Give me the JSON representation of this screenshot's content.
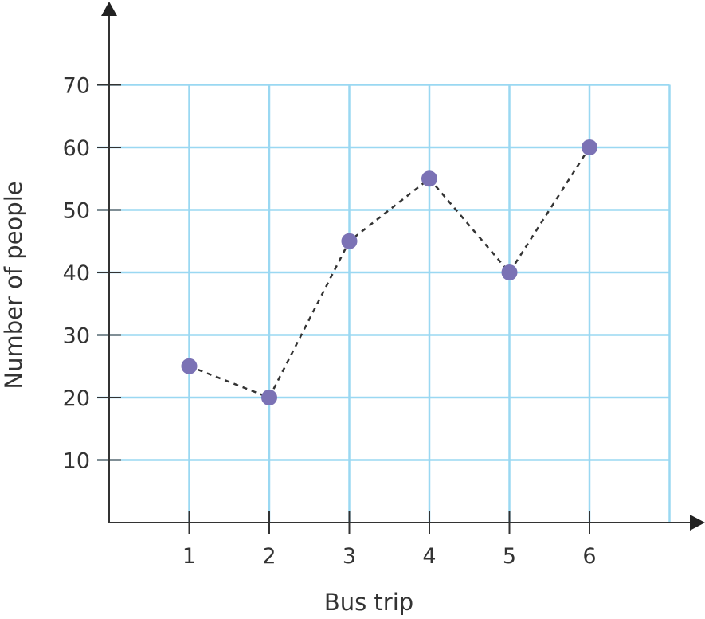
{
  "chart_data": {
    "type": "line",
    "title": "",
    "xlabel": "Bus trip",
    "ylabel": "Number of people",
    "x": [
      1,
      2,
      3,
      4,
      5,
      6
    ],
    "values": [
      25,
      20,
      45,
      55,
      40,
      60
    ],
    "xlim": [
      0,
      7
    ],
    "ylim": [
      0,
      70
    ],
    "xticks": [
      "1",
      "2",
      "3",
      "4",
      "5",
      "6"
    ],
    "yticks": [
      "10",
      "20",
      "30",
      "40",
      "50",
      "60",
      "70"
    ],
    "grid": true,
    "line_style": "dashed",
    "colors": {
      "grid": "#9ad8f2",
      "point": "#7b72b5",
      "line": "#333333",
      "axis": "#333333"
    }
  }
}
